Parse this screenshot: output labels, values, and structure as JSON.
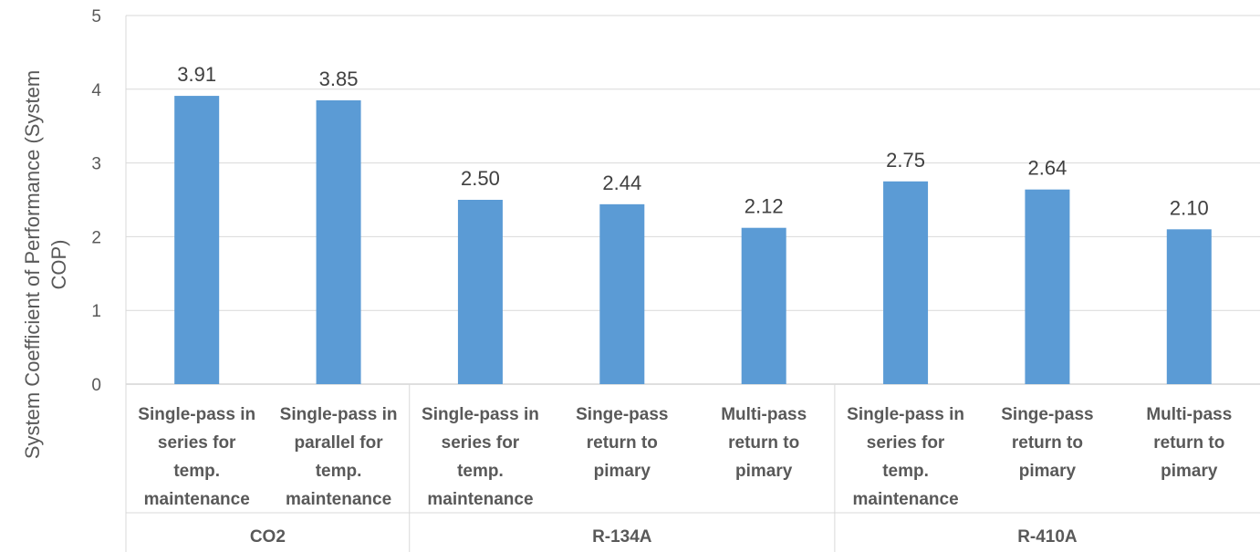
{
  "chart_data": {
    "type": "bar",
    "title": "",
    "ylabel_lines": [
      "System Coefficient of Performance  (System",
      "COP)"
    ],
    "ylim": [
      0,
      5
    ],
    "yticks": [
      0,
      1,
      2,
      3,
      4,
      5
    ],
    "grid": true,
    "bar_color": "#5b9bd5",
    "categories": [
      [
        "Single-pass in",
        "series for",
        "temp.",
        "maintenance"
      ],
      [
        "Single-pass in",
        "parallel for",
        "temp.",
        "maintenance"
      ],
      [
        "Single-pass in",
        "series for",
        "temp.",
        "maintenance"
      ],
      [
        "Singe-pass",
        "return to",
        "pimary"
      ],
      [
        "Multi-pass",
        "return to",
        "pimary"
      ],
      [
        "Single-pass in",
        "series for",
        "temp.",
        "maintenance"
      ],
      [
        "Singe-pass",
        "return to",
        "pimary"
      ],
      [
        "Multi-pass",
        "return to",
        "pimary"
      ]
    ],
    "groups": [
      {
        "name": "CO2",
        "count": 2
      },
      {
        "name": "R-134A",
        "count": 3
      },
      {
        "name": "R-410A",
        "count": 3
      }
    ],
    "values": [
      3.91,
      3.85,
      2.5,
      2.44,
      2.12,
      2.75,
      2.64,
      2.1
    ],
    "data_labels": [
      "3.91",
      "3.85",
      "2.50",
      "2.44",
      "2.12",
      "2.75",
      "2.64",
      "2.10"
    ]
  }
}
